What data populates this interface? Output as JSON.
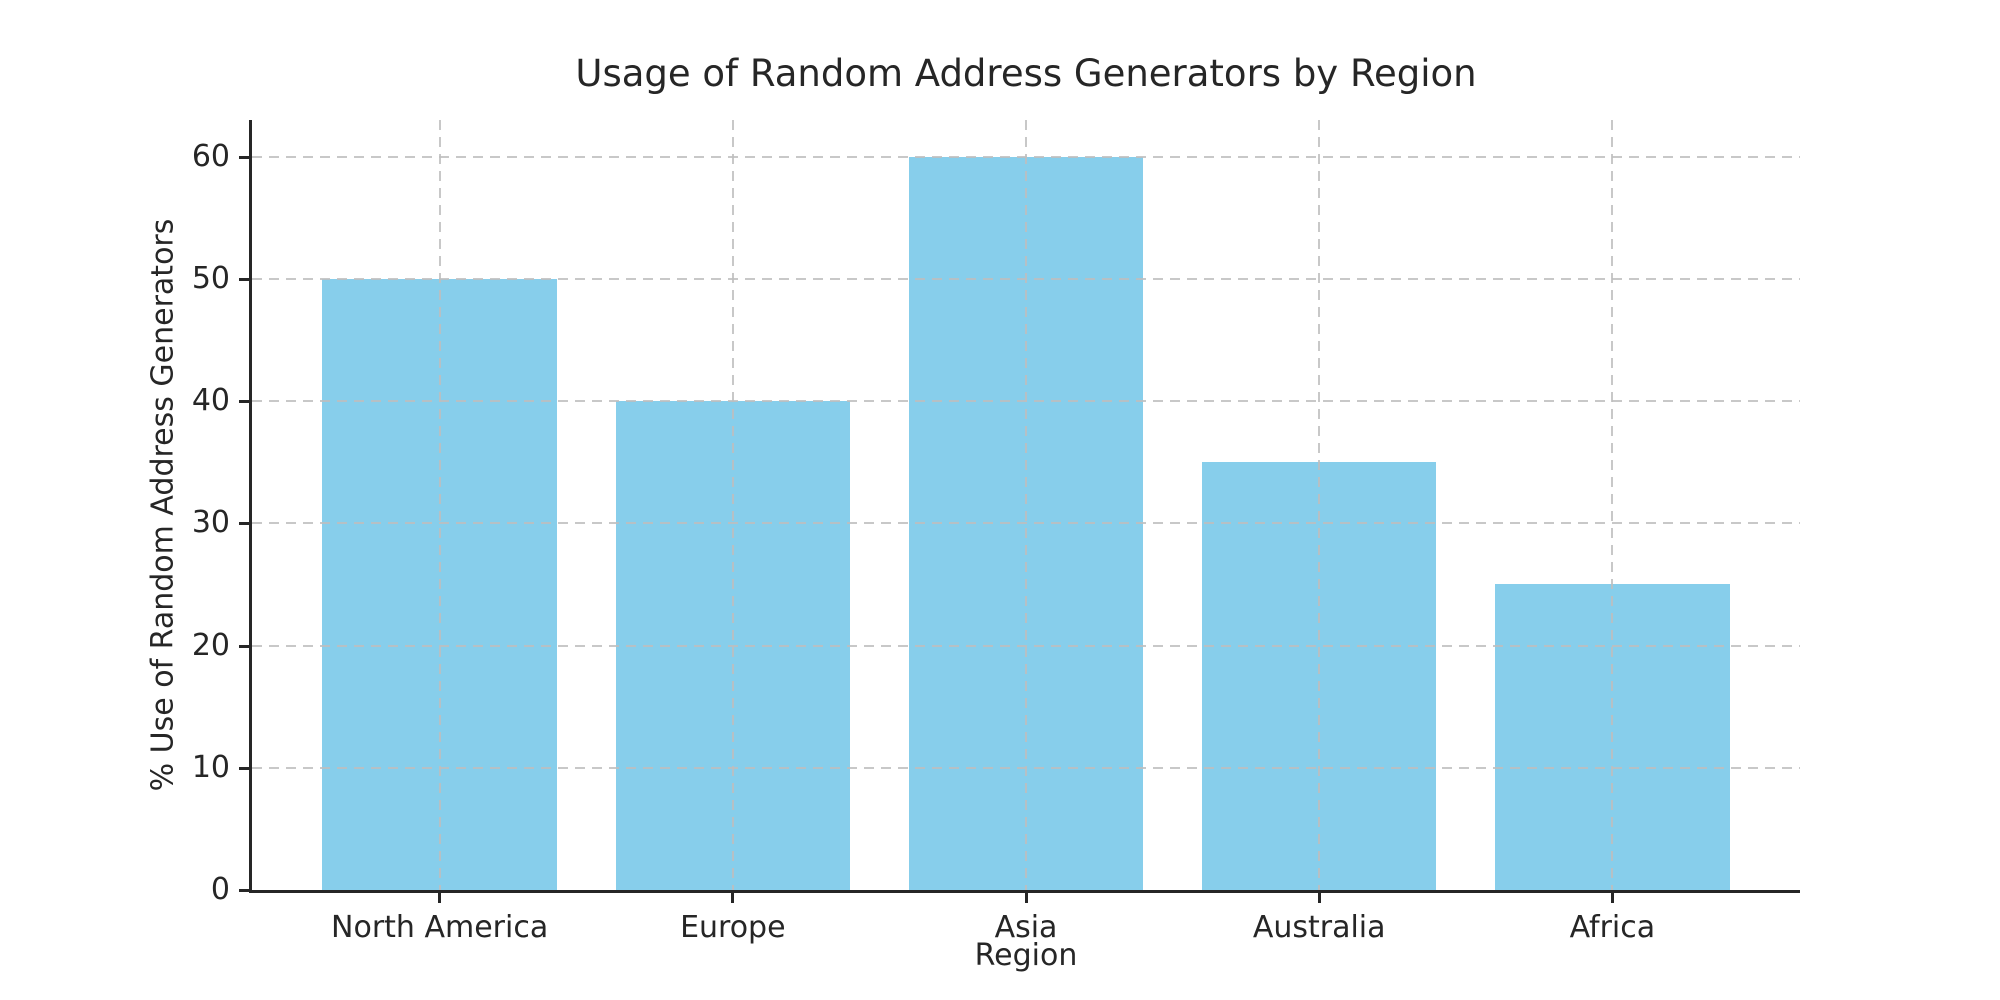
{
  "chart_data": {
    "type": "bar",
    "title": "Usage of Random Address Generators by Region",
    "xlabel": "Region",
    "ylabel": "% Use of Random Address Generators",
    "categories": [
      "North America",
      "Europe",
      "Asia",
      "Australia",
      "Africa"
    ],
    "values": [
      50,
      40,
      60,
      35,
      25
    ],
    "yticks": [
      0,
      10,
      20,
      30,
      40,
      50,
      60
    ],
    "ylim": [
      0,
      63
    ],
    "bar_color": "#87CEEB",
    "bar_width_fraction": 0.8,
    "grid": "both-axes, dashed, drawn over bars",
    "grid_color": "#bebebe",
    "axis_color": "#262626",
    "text_color": "#262626",
    "legend_position": "none",
    "background_color": "#ffffff"
  }
}
